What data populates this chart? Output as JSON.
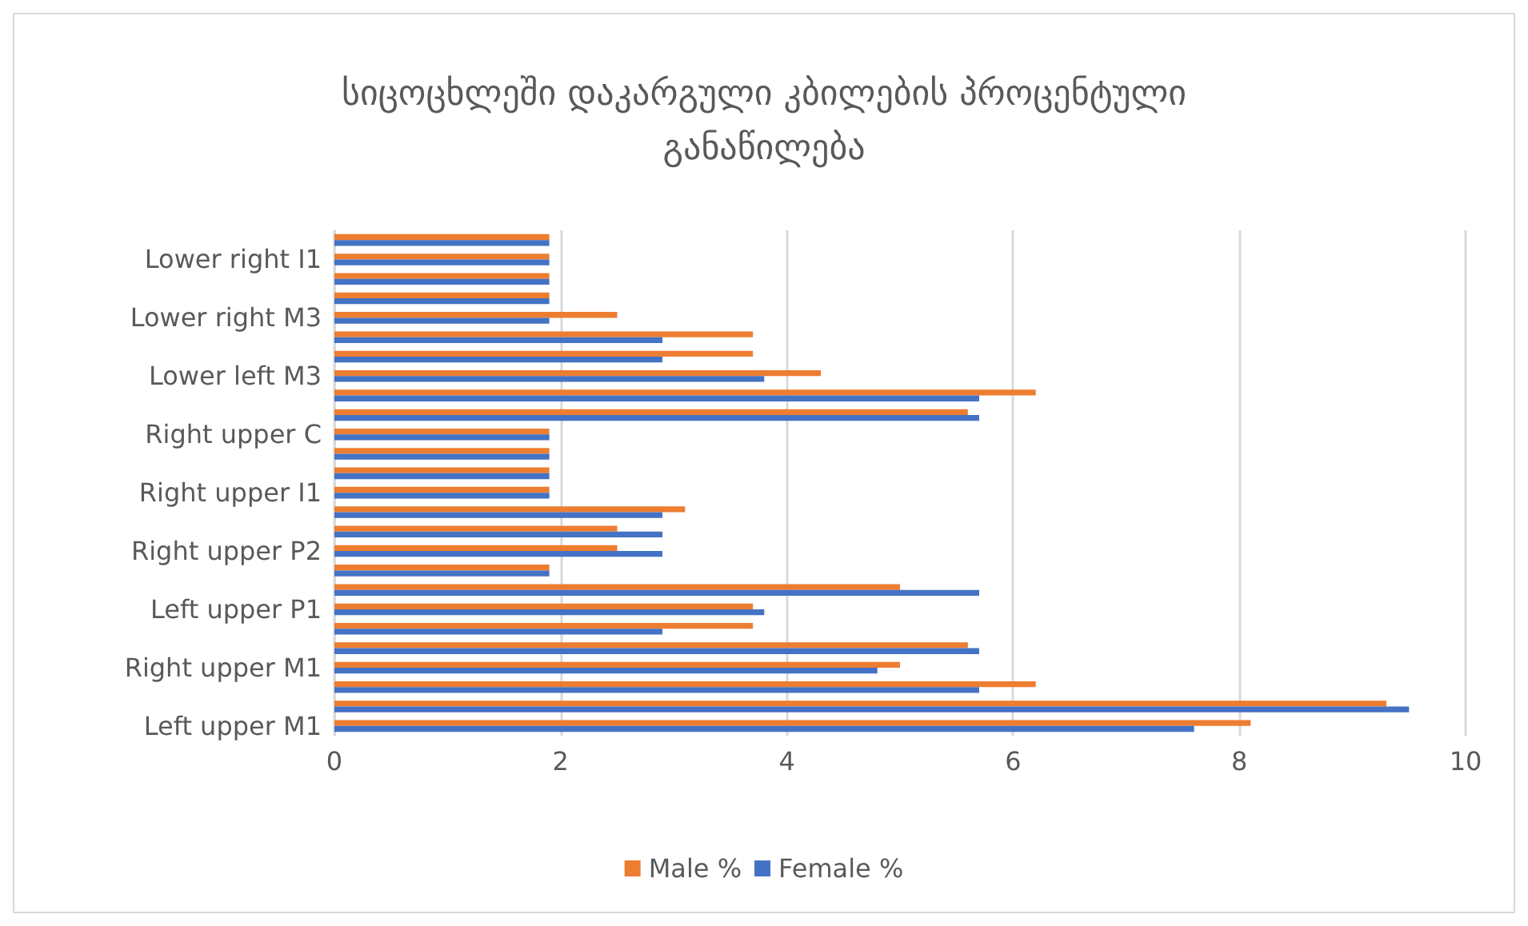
{
  "chart_data": {
    "type": "bar",
    "orientation": "horizontal",
    "title": "სიცოცხლეში დაკარგული კბილების პროცენტული\nგანაწილება",
    "categories": [
      null,
      "Lower right I1",
      null,
      null,
      "Lower right M3",
      null,
      null,
      "Lower left M3",
      null,
      null,
      "Right upper C",
      null,
      null,
      "Right upper I1",
      null,
      null,
      "Right upper P2",
      null,
      null,
      "Left upper P1",
      null,
      null,
      "Right upper M1",
      null,
      null,
      "Left upper M1"
    ],
    "series": [
      {
        "name": "Male %",
        "color": "#ed7d31",
        "values": [
          1.9,
          1.9,
          1.9,
          1.9,
          2.5,
          3.7,
          3.7,
          4.3,
          6.2,
          5.6,
          1.9,
          1.9,
          1.9,
          1.9,
          3.1,
          2.5,
          2.5,
          1.9,
          5.0,
          3.7,
          3.7,
          5.6,
          5.0,
          6.2,
          9.3,
          8.1
        ]
      },
      {
        "name": "Female %",
        "color": "#4472c4",
        "values": [
          1.9,
          1.9,
          1.9,
          1.9,
          1.9,
          2.9,
          2.9,
          3.8,
          5.7,
          5.7,
          1.9,
          1.9,
          1.9,
          1.9,
          2.9,
          2.9,
          2.9,
          1.9,
          5.7,
          3.8,
          2.9,
          5.7,
          4.8,
          5.7,
          9.5,
          7.6
        ]
      }
    ],
    "xlim": [
      0,
      10
    ],
    "xticks": [
      0,
      2,
      4,
      6,
      8,
      10
    ],
    "grid": "x",
    "legend": "bottom"
  }
}
